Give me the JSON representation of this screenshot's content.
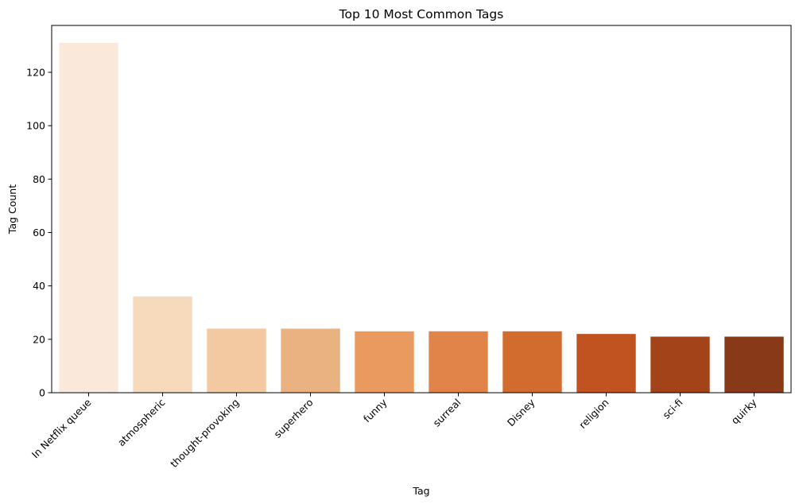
{
  "chart_data": {
    "type": "bar",
    "title": "Top 10 Most Common Tags",
    "xlabel": "Tag",
    "ylabel": "Tag Count",
    "categories": [
      "In Netflix queue",
      "atmospheric",
      "thought-provoking",
      "superhero",
      "funny",
      "surreal",
      "Disney",
      "religion",
      "sci-fi",
      "quirky"
    ],
    "values": [
      131,
      36,
      24,
      24,
      23,
      23,
      23,
      22,
      21,
      21
    ],
    "colors": [
      "#fae9da",
      "#f7d9bb",
      "#f2c9a0",
      "#eab181",
      "#ea9a5f",
      "#e0844a",
      "#d16b2e",
      "#c0531f",
      "#a24319",
      "#873918"
    ],
    "ylim": [
      0,
      137.55
    ],
    "yticks": [
      0,
      20,
      40,
      60,
      80,
      100,
      120
    ],
    "grid": false,
    "legend": "none"
  }
}
